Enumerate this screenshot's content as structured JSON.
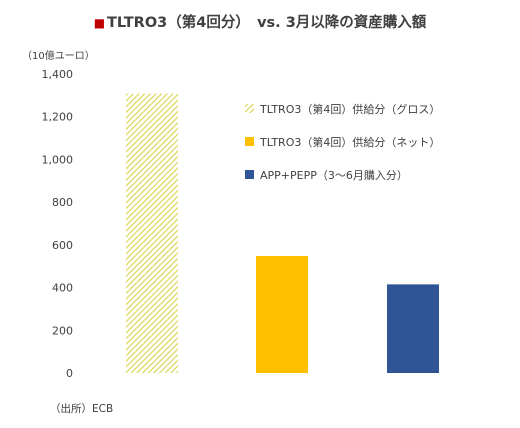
{
  "header": {
    "marker": "■",
    "title": "TLTRO3（第4回分）　vs. 3月以降の資産購入額"
  },
  "unit_label": "（10億ユーロ）",
  "source_label": "（出所）ECB",
  "chart_data": {
    "type": "bar",
    "title": "TLTRO3（第4回分）　vs. 3月以降の資産購入額",
    "ylabel": "（10億ユーロ）",
    "xlabel": "",
    "ylim": [
      0,
      1400
    ],
    "yticks": [
      0,
      200,
      400,
      600,
      800,
      1000,
      1200,
      1400
    ],
    "ytick_labels": [
      "0",
      "200",
      "400",
      "600",
      "800",
      "1,000",
      "1,200",
      "1,400"
    ],
    "grid": false,
    "legend_position": "right",
    "categories": [
      "TLTRO3（第4回）供給分（グロス）",
      "TLTRO3（第4回）供給分（ネット）",
      "APP+PEPP（3～6月購入分）"
    ],
    "values": [
      1308,
      548,
      415
    ],
    "colors": [
      "#e5df5a",
      "#ffc000",
      "#2f5597"
    ],
    "patterns": [
      "hatched",
      "solid",
      "solid"
    ],
    "legend": [
      "TLTRO3（第4回）供給分（グロス）",
      "TLTRO3（第4回）供給分（ネット）",
      "APP+PEPP（3～6月購入分）"
    ]
  }
}
